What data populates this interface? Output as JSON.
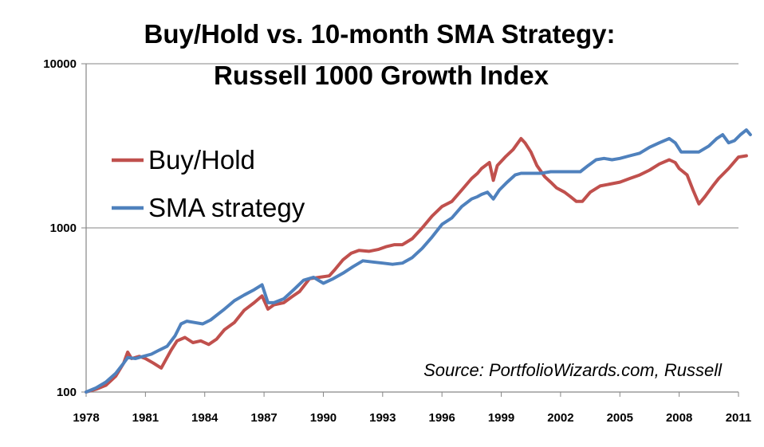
{
  "chart_data": {
    "type": "line",
    "title": "Buy/Hold vs. 10-month SMA Strategy:",
    "subtitle": "Russell 1000 Growth Index",
    "xlabel": "",
    "ylabel": "",
    "y_scale": "log",
    "ylim": [
      100,
      10000
    ],
    "xlim": [
      1978,
      2011
    ],
    "y_ticks": [
      {
        "value": 100,
        "label": "100"
      },
      {
        "value": 1000,
        "label": "1000"
      },
      {
        "value": 10000,
        "label": "10000"
      }
    ],
    "x_ticks": [
      {
        "value": 1978,
        "label": "1978"
      },
      {
        "value": 1981,
        "label": "1981"
      },
      {
        "value": 1984,
        "label": "1984"
      },
      {
        "value": 1987,
        "label": "1987"
      },
      {
        "value": 1990,
        "label": "1990"
      },
      {
        "value": 1993,
        "label": "1993"
      },
      {
        "value": 1996,
        "label": "1996"
      },
      {
        "value": 1999,
        "label": "1999"
      },
      {
        "value": 2002,
        "label": "2002"
      },
      {
        "value": 2005,
        "label": "2005"
      },
      {
        "value": 2008,
        "label": "2008"
      },
      {
        "value": 2011,
        "label": "2011"
      }
    ],
    "grid": {
      "horizontal": true,
      "vertical": false
    },
    "legend_position": "upper-left",
    "annotation": "Source: PortfolioWizards.com, Russell",
    "series": [
      {
        "name": "Buy/Hold",
        "color": "#c0504d",
        "points": [
          [
            1978.0,
            100
          ],
          [
            1978.5,
            104
          ],
          [
            1979.0,
            110
          ],
          [
            1979.5,
            125
          ],
          [
            1979.9,
            150
          ],
          [
            1980.1,
            175
          ],
          [
            1980.3,
            160
          ],
          [
            1980.7,
            165
          ],
          [
            1981.0,
            160
          ],
          [
            1981.4,
            150
          ],
          [
            1981.8,
            140
          ],
          [
            1982.0,
            155
          ],
          [
            1982.3,
            180
          ],
          [
            1982.6,
            205
          ],
          [
            1983.0,
            215
          ],
          [
            1983.4,
            200
          ],
          [
            1983.8,
            205
          ],
          [
            1984.2,
            195
          ],
          [
            1984.6,
            210
          ],
          [
            1985.0,
            240
          ],
          [
            1985.5,
            265
          ],
          [
            1986.0,
            315
          ],
          [
            1986.5,
            350
          ],
          [
            1986.9,
            385
          ],
          [
            1987.2,
            320
          ],
          [
            1987.5,
            340
          ],
          [
            1988.0,
            350
          ],
          [
            1988.4,
            380
          ],
          [
            1988.8,
            410
          ],
          [
            1989.3,
            490
          ],
          [
            1989.8,
            500
          ],
          [
            1990.3,
            510
          ],
          [
            1990.6,
            560
          ],
          [
            1991.0,
            640
          ],
          [
            1991.4,
            700
          ],
          [
            1991.8,
            730
          ],
          [
            1992.3,
            720
          ],
          [
            1992.8,
            740
          ],
          [
            1993.2,
            770
          ],
          [
            1993.6,
            790
          ],
          [
            1994.0,
            790
          ],
          [
            1994.5,
            860
          ],
          [
            1995.0,
            1000
          ],
          [
            1995.5,
            1180
          ],
          [
            1996.0,
            1350
          ],
          [
            1996.5,
            1450
          ],
          [
            1997.0,
            1700
          ],
          [
            1997.5,
            2000
          ],
          [
            1997.8,
            2150
          ],
          [
            1998.0,
            2300
          ],
          [
            1998.4,
            2500
          ],
          [
            1998.6,
            1950
          ],
          [
            1998.8,
            2400
          ],
          [
            1999.2,
            2700
          ],
          [
            1999.6,
            3000
          ],
          [
            2000.0,
            3500
          ],
          [
            2000.2,
            3300
          ],
          [
            2000.5,
            2900
          ],
          [
            2000.8,
            2400
          ],
          [
            2001.2,
            2050
          ],
          [
            2001.5,
            1900
          ],
          [
            2001.8,
            1750
          ],
          [
            2002.2,
            1650
          ],
          [
            2002.5,
            1550
          ],
          [
            2002.8,
            1450
          ],
          [
            2003.1,
            1450
          ],
          [
            2003.5,
            1650
          ],
          [
            2004.0,
            1800
          ],
          [
            2004.5,
            1850
          ],
          [
            2005.0,
            1900
          ],
          [
            2005.5,
            2000
          ],
          [
            2006.0,
            2100
          ],
          [
            2006.5,
            2250
          ],
          [
            2007.0,
            2450
          ],
          [
            2007.5,
            2600
          ],
          [
            2007.8,
            2500
          ],
          [
            2008.0,
            2300
          ],
          [
            2008.4,
            2100
          ],
          [
            2008.7,
            1700
          ],
          [
            2009.0,
            1400
          ],
          [
            2009.3,
            1550
          ],
          [
            2009.7,
            1800
          ],
          [
            2010.0,
            2000
          ],
          [
            2010.5,
            2300
          ],
          [
            2011.0,
            2700
          ],
          [
            2011.4,
            2750
          ]
        ]
      },
      {
        "name": "SMA strategy",
        "color": "#4f81bd",
        "points": [
          [
            1978.0,
            100
          ],
          [
            1978.5,
            106
          ],
          [
            1979.0,
            115
          ],
          [
            1979.5,
            130
          ],
          [
            1979.9,
            150
          ],
          [
            1980.1,
            162
          ],
          [
            1980.5,
            160
          ],
          [
            1980.9,
            165
          ],
          [
            1981.3,
            170
          ],
          [
            1981.7,
            180
          ],
          [
            1982.1,
            190
          ],
          [
            1982.5,
            220
          ],
          [
            1982.8,
            260
          ],
          [
            1983.1,
            270
          ],
          [
            1983.5,
            265
          ],
          [
            1983.9,
            260
          ],
          [
            1984.3,
            275
          ],
          [
            1984.7,
            300
          ],
          [
            1985.0,
            320
          ],
          [
            1985.5,
            360
          ],
          [
            1986.0,
            390
          ],
          [
            1986.5,
            420
          ],
          [
            1986.9,
            450
          ],
          [
            1987.2,
            350
          ],
          [
            1987.5,
            350
          ],
          [
            1988.0,
            370
          ],
          [
            1988.5,
            420
          ],
          [
            1989.0,
            480
          ],
          [
            1989.5,
            500
          ],
          [
            1990.0,
            460
          ],
          [
            1990.5,
            490
          ],
          [
            1991.0,
            530
          ],
          [
            1991.5,
            580
          ],
          [
            1992.0,
            630
          ],
          [
            1992.5,
            620
          ],
          [
            1993.0,
            610
          ],
          [
            1993.5,
            600
          ],
          [
            1994.0,
            610
          ],
          [
            1994.5,
            660
          ],
          [
            1995.0,
            750
          ],
          [
            1995.5,
            880
          ],
          [
            1996.0,
            1050
          ],
          [
            1996.5,
            1150
          ],
          [
            1997.0,
            1350
          ],
          [
            1997.5,
            1500
          ],
          [
            1997.8,
            1550
          ],
          [
            1998.0,
            1600
          ],
          [
            1998.3,
            1650
          ],
          [
            1998.6,
            1500
          ],
          [
            1998.9,
            1700
          ],
          [
            1999.3,
            1900
          ],
          [
            1999.7,
            2100
          ],
          [
            2000.0,
            2150
          ],
          [
            2000.5,
            2150
          ],
          [
            2001.0,
            2150
          ],
          [
            2001.5,
            2200
          ],
          [
            2002.0,
            2200
          ],
          [
            2002.5,
            2200
          ],
          [
            2003.0,
            2200
          ],
          [
            2003.4,
            2400
          ],
          [
            2003.8,
            2600
          ],
          [
            2004.2,
            2650
          ],
          [
            2004.6,
            2600
          ],
          [
            2005.0,
            2650
          ],
          [
            2005.5,
            2750
          ],
          [
            2006.0,
            2850
          ],
          [
            2006.5,
            3100
          ],
          [
            2007.0,
            3300
          ],
          [
            2007.5,
            3500
          ],
          [
            2007.8,
            3300
          ],
          [
            2008.1,
            2900
          ],
          [
            2008.5,
            2900
          ],
          [
            2009.0,
            2900
          ],
          [
            2009.5,
            3150
          ],
          [
            2009.9,
            3500
          ],
          [
            2010.2,
            3700
          ],
          [
            2010.5,
            3300
          ],
          [
            2010.8,
            3400
          ],
          [
            2011.1,
            3700
          ],
          [
            2011.4,
            3950
          ],
          [
            2011.6,
            3700
          ]
        ]
      }
    ]
  }
}
